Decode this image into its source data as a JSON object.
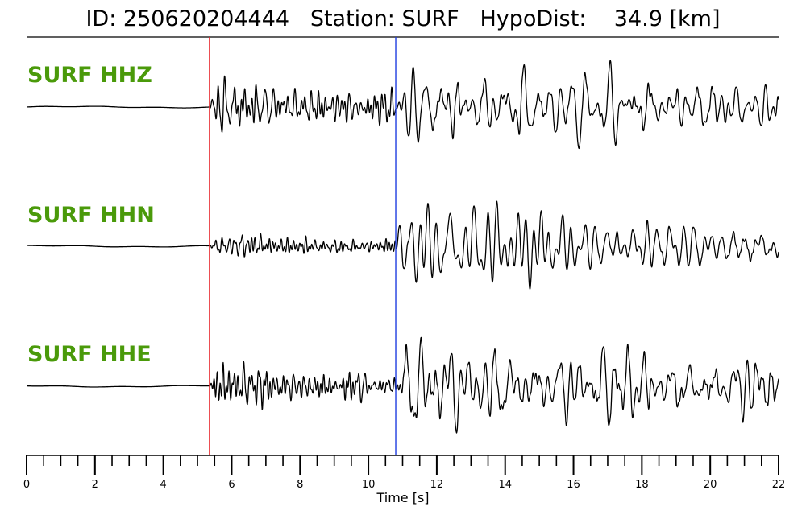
{
  "header": {
    "id_label": "ID:",
    "id_value": "250620204444",
    "station_label": "Station:",
    "station_value": "SURF",
    "dist_label": "HypoDist:",
    "dist_value": "34.9",
    "dist_unit": "[km]"
  },
  "colors": {
    "label": "#4a9a0a",
    "trace": "#000000",
    "p_pick": "#e8262b",
    "s_pick": "#1e3de0"
  },
  "chart_data": {
    "type": "line",
    "title": "ID: 250620204444   Station: SURF   HypoDist:    34.9 [km]",
    "xlabel": "Time [s]",
    "ylabel": "",
    "xlim": [
      0,
      22
    ],
    "x_ticks": [
      "0",
      "2",
      "4",
      "6",
      "8",
      "10",
      "12",
      "14",
      "16",
      "18",
      "20",
      "22"
    ],
    "minor_tick_step": 0.5,
    "grid": false,
    "picks": [
      {
        "phase": "P",
        "time": 5.35,
        "color": "#e8262b"
      },
      {
        "phase": "S",
        "time": 10.8,
        "color": "#1e3de0"
      }
    ],
    "series": [
      {
        "name": "SURF HHZ",
        "p_amp": 1.0,
        "s_amp": 1.15,
        "coda": 0.55,
        "seed": 11
      },
      {
        "name": "SURF HHN",
        "p_amp": 0.45,
        "s_amp": 1.35,
        "coda": 0.45,
        "seed": 23
      },
      {
        "name": "SURF HHE",
        "p_amp": 0.95,
        "s_amp": 1.35,
        "coda": 0.5,
        "seed": 37
      }
    ]
  }
}
